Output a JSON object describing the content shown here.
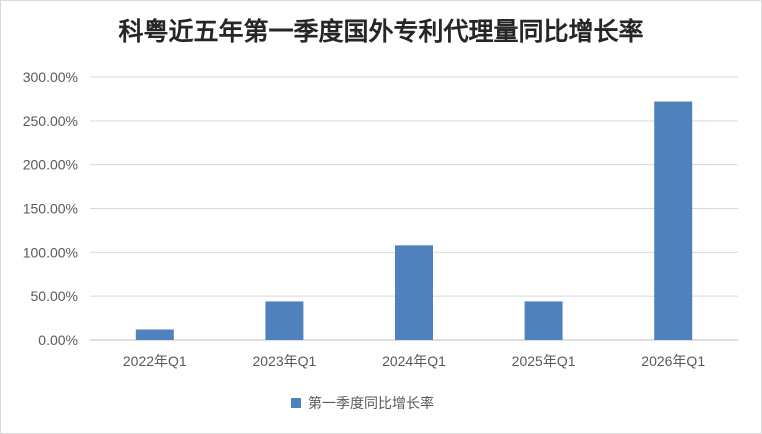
{
  "chart_data": {
    "type": "bar",
    "title": "科粤近五年第一季度国外专利代理量同比增长率",
    "categories": [
      "2022年Q1",
      "2023年Q1",
      "2024年Q1",
      "2025年Q1",
      "2026年Q1"
    ],
    "series": [
      {
        "name": "第一季度同比增长率",
        "values": [
          12,
          44,
          108,
          44,
          272
        ],
        "color": "#4f81bd"
      }
    ],
    "ylim": [
      0,
      300
    ],
    "yticks": [
      "0.00%",
      "50.00%",
      "100.00%",
      "150.00%",
      "200.00%",
      "250.00%",
      "300.00%"
    ],
    "grid": true,
    "legend_position": "bottom"
  }
}
